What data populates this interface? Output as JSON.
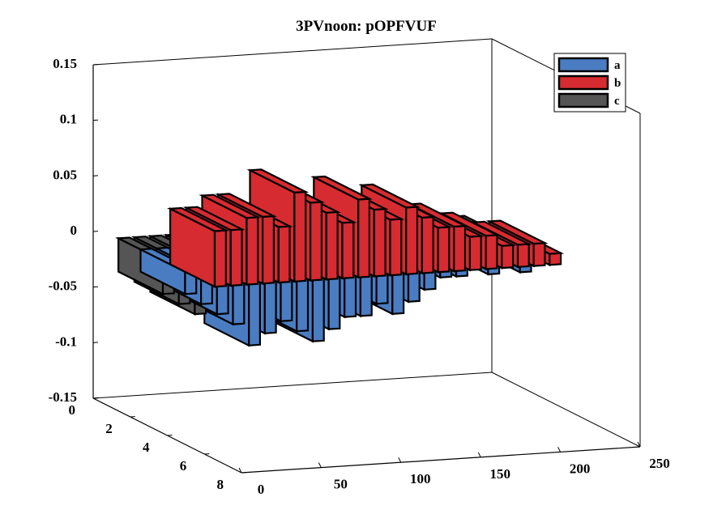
{
  "chart_data": {
    "type": "bar3",
    "title": "3PVnoon: pOPFVUF",
    "z_ticks": [
      "0.15",
      "0.1",
      "0.05",
      "0",
      "-0.05",
      "-0.1",
      "-0.15"
    ],
    "y_ticks": [
      "0",
      "2",
      "4",
      "6",
      "8"
    ],
    "x_ticks": [
      "0",
      "50",
      "100",
      "150",
      "200",
      "250"
    ],
    "zlim": [
      -0.15,
      0.15
    ],
    "xlim": [
      0,
      250
    ],
    "ylim": [
      0,
      8
    ],
    "legend": {
      "position": "top-right",
      "entries": [
        {
          "label": "a",
          "color": "#4a7cc2"
        },
        {
          "label": "b",
          "color": "#d62b30"
        },
        {
          "label": "c",
          "color": "#555555"
        }
      ]
    },
    "series": [
      {
        "name": "a",
        "color": "#4a7cc2",
        "x": [
          10,
          20,
          30,
          40,
          50,
          60,
          70,
          80,
          90,
          100,
          110,
          120,
          130,
          140,
          150,
          160,
          170,
          180,
          190,
          200,
          210,
          220
        ],
        "values": [
          -0.02,
          -0.03,
          -0.04,
          -0.05,
          -0.07,
          -0.06,
          -0.05,
          -0.06,
          -0.07,
          -0.06,
          -0.05,
          -0.05,
          -0.04,
          -0.05,
          -0.04,
          -0.03,
          -0.02,
          -0.02,
          -0.01,
          -0.02,
          -0.01,
          -0.02
        ]
      },
      {
        "name": "b",
        "color": "#d62b30",
        "x": [
          10,
          20,
          30,
          40,
          50,
          60,
          70,
          80,
          90,
          100,
          110,
          120,
          130,
          140,
          150,
          160,
          170,
          180,
          190,
          200,
          210,
          220
        ],
        "values": [
          0.05,
          0.05,
          0.06,
          0.06,
          0.05,
          0.08,
          0.07,
          0.06,
          0.05,
          0.07,
          0.06,
          0.05,
          0.06,
          0.05,
          0.04,
          0.04,
          0.03,
          0.03,
          0.02,
          0.02,
          0.02,
          0.01
        ]
      },
      {
        "name": "c",
        "color": "#555555",
        "x": [
          10,
          20,
          30,
          40,
          50,
          60,
          70,
          80,
          90,
          100,
          110,
          120,
          130,
          140,
          150,
          160,
          170,
          180,
          190,
          200,
          210,
          220
        ],
        "values": [
          -0.03,
          -0.04,
          -0.05,
          -0.05,
          -0.06,
          -0.05,
          -0.05,
          -0.05,
          -0.06,
          -0.05,
          -0.05,
          -0.04,
          -0.04,
          -0.04,
          -0.03,
          -0.03,
          -0.03,
          -0.02,
          -0.02,
          -0.02,
          -0.02,
          -0.02
        ]
      }
    ],
    "grid": false
  }
}
